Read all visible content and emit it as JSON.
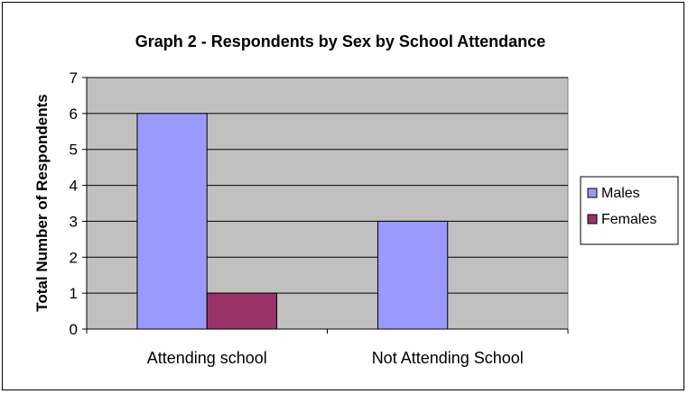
{
  "chart_data": {
    "type": "bar",
    "title": "Graph 2 - Respondents by Sex by School Attendance",
    "xlabel": "",
    "ylabel": "Total Number of Respondents",
    "ylim": [
      0,
      7
    ],
    "yticks": [
      0,
      1,
      2,
      3,
      4,
      5,
      6,
      7
    ],
    "grid": true,
    "legend_position": "right",
    "categories": [
      "Attending school",
      "Not Attending School"
    ],
    "series": [
      {
        "name": "Males",
        "values": [
          6,
          3
        ],
        "color": "#9999ff"
      },
      {
        "name": "Females",
        "values": [
          1,
          0
        ],
        "color": "#993366"
      }
    ],
    "plot_background": "#c0c0c0"
  }
}
